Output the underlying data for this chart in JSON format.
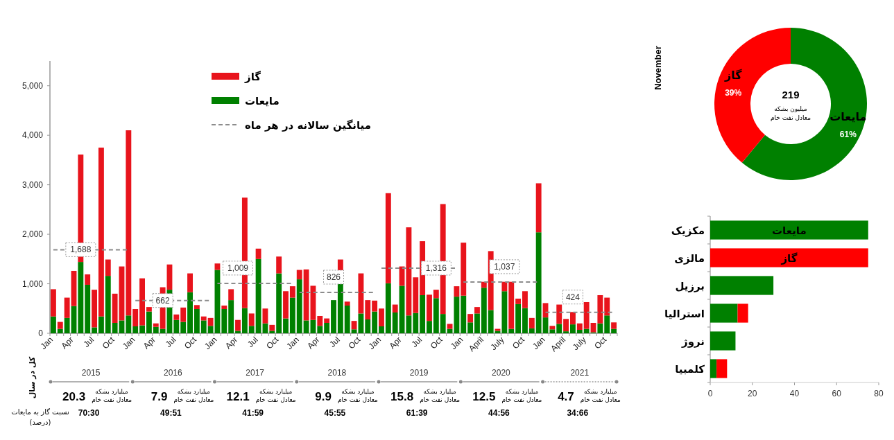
{
  "chart_data": [
    {
      "type": "bar",
      "stacked": true,
      "legend": "top",
      "categories": [
        "Jan",
        null,
        null,
        "Apr",
        null,
        null,
        "Jul",
        null,
        null,
        "Oct",
        null,
        null,
        "Jan",
        null,
        null,
        "Apr",
        null,
        null,
        "Jul",
        null,
        null,
        "Oct",
        null,
        null,
        "Jan",
        null,
        null,
        "Apr",
        null,
        null,
        "Jul",
        null,
        null,
        "Oct",
        null,
        null,
        "Jan",
        null,
        null,
        "Apr",
        null,
        null,
        "Jul",
        null,
        null,
        "Oct",
        null,
        null,
        "Jan",
        null,
        null,
        "Apr",
        null,
        null,
        "Jul",
        null,
        null,
        "Oct",
        null,
        null,
        "Jan",
        null,
        null,
        "April",
        null,
        null,
        "July",
        null,
        null,
        "Oct",
        null,
        null,
        "Jan",
        null,
        null,
        "April",
        null,
        null,
        "July",
        null,
        null,
        "Oct",
        null
      ],
      "ylim": [
        0,
        5500
      ],
      "yticks": [
        0,
        {
          "value": 1000,
          "label": "1,000"
        },
        {
          "value": 2000,
          "label": "2,000"
        },
        {
          "value": 3000,
          "label": "3,000"
        },
        {
          "value": 4000,
          "label": "4,000"
        },
        {
          "value": 5000,
          "label": "5,000"
        }
      ],
      "series": [
        {
          "name": "مایعات",
          "color": "#008000",
          "values": [
            340,
            90,
            310,
            550,
            1440,
            980,
            120,
            340,
            1160,
            210,
            260,
            360,
            140,
            160,
            440,
            130,
            90,
            880,
            270,
            230,
            830,
            490,
            260,
            150,
            1280,
            490,
            670,
            50,
            510,
            150,
            1500,
            200,
            50,
            1210,
            300,
            720,
            1090,
            260,
            270,
            150,
            210,
            670,
            1000,
            560,
            80,
            400,
            280,
            440,
            140,
            1010,
            420,
            960,
            360,
            410,
            770,
            250,
            710,
            390,
            90,
            740,
            760,
            220,
            400,
            920,
            470,
            50,
            850,
            90,
            590,
            510,
            100,
            2040,
            320,
            80,
            190,
            40,
            180,
            70,
            90,
            20,
            200,
            360,
            90
          ]
        },
        {
          "name": "گاز",
          "color": "#e8141c",
          "values": [
            550,
            140,
            410,
            710,
            2170,
            210,
            760,
            3410,
            330,
            590,
            1090,
            3740,
            350,
            950,
            90,
            70,
            840,
            510,
            110,
            290,
            380,
            80,
            80,
            160,
            130,
            70,
            220,
            220,
            2230,
            250,
            210,
            300,
            120,
            340,
            550,
            230,
            190,
            1030,
            690,
            200,
            90,
            null,
            490,
            80,
            170,
            810,
            390,
            220,
            360,
            1820,
            160,
            390,
            1780,
            720,
            1090,
            530,
            170,
            2220,
            100,
            210,
            1070,
            170,
            130,
            120,
            1190,
            40,
            190,
            950,
            110,
            340,
            210,
            990,
            290,
            70,
            390,
            250,
            250,
            130,
            540,
            190,
            570,
            360,
            130
          ]
        },
        {
          "name": "میانگین سالانه در هر ماه",
          "type": "line",
          "color": "#8c8c8c",
          "line_style": "dashed",
          "values": [
            1688,
            1688,
            1688,
            1688,
            1688,
            1688,
            1688,
            1688,
            1688,
            1688,
            1688,
            1688,
            null,
            null,
            null,
            null,
            null,
            null,
            null,
            null,
            null,
            null,
            null,
            null,
            null,
            null,
            null,
            null,
            null,
            null,
            null,
            null,
            null,
            null,
            null,
            null,
            null,
            null,
            null,
            null,
            null,
            null,
            null,
            null,
            null,
            null,
            null,
            null,
            null,
            null,
            null,
            null,
            null,
            null,
            null,
            null,
            null,
            null,
            null,
            null,
            null,
            null,
            null,
            null,
            null,
            null,
            null,
            null,
            null,
            null,
            null,
            null,
            null,
            null,
            null,
            null,
            null,
            null,
            null,
            null,
            null,
            null,
            null
          ],
          "value_labels": [
            null,
            null,
            null,
            null,
            "1,688",
            null,
            null,
            null,
            null,
            null,
            null,
            null,
            null,
            null,
            null,
            null,
            null,
            null,
            null,
            null,
            null,
            null,
            null,
            null,
            null,
            null,
            null,
            null,
            null,
            null,
            null,
            null,
            null,
            null,
            null,
            null,
            null,
            null,
            null,
            null,
            null,
            null,
            null,
            null,
            null,
            null,
            null,
            null,
            null,
            null,
            null,
            null,
            null,
            null,
            null,
            null,
            null,
            null,
            null,
            null,
            null,
            null,
            null,
            null,
            null,
            null,
            null,
            null,
            null,
            null,
            null,
            null,
            null,
            null,
            null,
            null,
            null,
            null,
            null,
            null,
            null,
            null,
            null
          ]
        },
        {
          "type": "line",
          "color": "#8c8c8c",
          "line_style": "dashed",
          "values": [
            null,
            null,
            null,
            null,
            null,
            null,
            null,
            null,
            null,
            null,
            null,
            null,
            662,
            662,
            662,
            662,
            662,
            662,
            662,
            662,
            662,
            662,
            662,
            662,
            null,
            null,
            null,
            null,
            null,
            null,
            null,
            null,
            null,
            null,
            null,
            null,
            null,
            null,
            null,
            null,
            null,
            null,
            null,
            null,
            null,
            null,
            null,
            null,
            null,
            null,
            null,
            null,
            null,
            null,
            null,
            null,
            null,
            null,
            null,
            null,
            null,
            null,
            null,
            null,
            null,
            null,
            null,
            null,
            null,
            null,
            null,
            null,
            null,
            null,
            null,
            null,
            null,
            null,
            null,
            null,
            null,
            null,
            null
          ],
          "value_labels": [
            null,
            null,
            null,
            null,
            null,
            null,
            null,
            null,
            null,
            null,
            null,
            null,
            null,
            null,
            null,
            null,
            "662",
            null,
            null,
            null,
            null,
            null,
            null,
            null,
            null,
            null,
            null,
            null,
            null,
            null,
            null,
            null,
            null,
            null,
            null,
            null,
            null,
            null,
            null,
            null,
            null,
            null,
            null,
            null,
            null,
            null,
            null,
            null,
            null,
            null,
            null,
            null,
            null,
            null,
            null,
            null,
            null,
            null,
            null,
            null,
            null,
            null,
            null,
            null,
            null,
            null,
            null,
            null,
            null,
            null,
            null,
            null,
            null,
            null,
            null,
            null,
            null,
            null,
            null,
            null,
            null,
            null,
            null
          ]
        },
        {
          "type": "line",
          "color": "#8c8c8c",
          "line_style": "dashed",
          "values": [
            null,
            null,
            null,
            null,
            null,
            null,
            null,
            null,
            null,
            null,
            null,
            null,
            null,
            null,
            null,
            null,
            null,
            null,
            null,
            null,
            null,
            null,
            null,
            null,
            1009,
            1009,
            1009,
            1009,
            1009,
            1009,
            1009,
            1009,
            1009,
            1009,
            1009,
            1009,
            null,
            null,
            null,
            null,
            null,
            null,
            null,
            null,
            null,
            null,
            null,
            null,
            null,
            null,
            null,
            null,
            null,
            null,
            null,
            null,
            null,
            null,
            null,
            null,
            null,
            null,
            null,
            null,
            null,
            null,
            null,
            null,
            null,
            null,
            null,
            null,
            null,
            null,
            null,
            null,
            null,
            null,
            null,
            null,
            null,
            null,
            null
          ],
          "value_labels": [
            null,
            null,
            null,
            null,
            null,
            null,
            null,
            null,
            null,
            null,
            null,
            null,
            null,
            null,
            null,
            null,
            null,
            null,
            null,
            null,
            null,
            null,
            null,
            null,
            null,
            null,
            null,
            "1,009",
            null,
            null,
            null,
            null,
            null,
            null,
            null,
            null,
            null,
            null,
            null,
            null,
            null,
            null,
            null,
            null,
            null,
            null,
            null,
            null,
            null,
            null,
            null,
            null,
            null,
            null,
            null,
            null,
            null,
            null,
            null,
            null,
            null,
            null,
            null,
            null,
            null,
            null,
            null,
            null,
            null,
            null,
            null,
            null,
            null,
            null,
            null,
            null,
            null,
            null,
            null,
            null,
            null,
            null,
            null
          ]
        },
        {
          "type": "line",
          "color": "#8c8c8c",
          "line_style": "dashed",
          "values": [
            null,
            null,
            null,
            null,
            null,
            null,
            null,
            null,
            null,
            null,
            null,
            null,
            null,
            null,
            null,
            null,
            null,
            null,
            null,
            null,
            null,
            null,
            null,
            null,
            null,
            null,
            null,
            null,
            null,
            null,
            null,
            null,
            null,
            null,
            null,
            null,
            826,
            826,
            826,
            826,
            826,
            826,
            826,
            826,
            826,
            826,
            826,
            826,
            null,
            null,
            null,
            null,
            null,
            null,
            null,
            null,
            null,
            null,
            null,
            null,
            null,
            null,
            null,
            null,
            null,
            null,
            null,
            null,
            null,
            null,
            null,
            null,
            null,
            null,
            null,
            null,
            null,
            null,
            null,
            null,
            null,
            null,
            null
          ],
          "value_labels": [
            null,
            null,
            null,
            null,
            null,
            null,
            null,
            null,
            null,
            null,
            null,
            null,
            null,
            null,
            null,
            null,
            null,
            null,
            null,
            null,
            null,
            null,
            null,
            null,
            null,
            null,
            null,
            null,
            null,
            null,
            null,
            null,
            null,
            null,
            null,
            null,
            null,
            null,
            null,
            null,
            null,
            "826",
            null,
            null,
            null,
            null,
            null,
            null,
            null,
            null,
            null,
            null,
            null,
            null,
            null,
            null,
            null,
            null,
            null,
            null,
            null,
            null,
            null,
            null,
            null,
            null,
            null,
            null,
            null,
            null,
            null,
            null,
            null,
            null,
            null,
            null,
            null,
            null,
            null,
            null,
            null,
            null,
            null
          ]
        },
        {
          "type": "line",
          "color": "#8c8c8c",
          "line_style": "dashed",
          "values": [
            null,
            null,
            null,
            null,
            null,
            null,
            null,
            null,
            null,
            null,
            null,
            null,
            null,
            null,
            null,
            null,
            null,
            null,
            null,
            null,
            null,
            null,
            null,
            null,
            null,
            null,
            null,
            null,
            null,
            null,
            null,
            null,
            null,
            null,
            null,
            null,
            null,
            null,
            null,
            null,
            null,
            null,
            null,
            null,
            null,
            null,
            null,
            null,
            1316,
            1316,
            1316,
            1316,
            1316,
            1316,
            1316,
            1316,
            1316,
            1316,
            1316,
            1316,
            null,
            null,
            null,
            null,
            null,
            null,
            null,
            null,
            null,
            null,
            null,
            null,
            null,
            null,
            null,
            null,
            null,
            null,
            null,
            null,
            null,
            null,
            null
          ],
          "value_labels": [
            null,
            null,
            null,
            null,
            null,
            null,
            null,
            null,
            null,
            null,
            null,
            null,
            null,
            null,
            null,
            null,
            null,
            null,
            null,
            null,
            null,
            null,
            null,
            null,
            null,
            null,
            null,
            null,
            null,
            null,
            null,
            null,
            null,
            null,
            null,
            null,
            null,
            null,
            null,
            null,
            null,
            null,
            null,
            null,
            null,
            null,
            null,
            null,
            null,
            null,
            null,
            null,
            null,
            null,
            null,
            null,
            "1,316",
            null,
            null,
            null,
            null,
            null,
            null,
            null,
            null,
            null,
            null,
            null,
            null,
            null,
            null,
            null,
            null,
            null,
            null,
            null,
            null,
            null,
            null,
            null,
            null,
            null,
            null
          ]
        },
        {
          "type": "line",
          "color": "#8c8c8c",
          "line_style": "dashed",
          "values": [
            null,
            null,
            null,
            null,
            null,
            null,
            null,
            null,
            null,
            null,
            null,
            null,
            null,
            null,
            null,
            null,
            null,
            null,
            null,
            null,
            null,
            null,
            null,
            null,
            null,
            null,
            null,
            null,
            null,
            null,
            null,
            null,
            null,
            null,
            null,
            null,
            null,
            null,
            null,
            null,
            null,
            null,
            null,
            null,
            null,
            null,
            null,
            null,
            null,
            null,
            null,
            null,
            null,
            null,
            null,
            null,
            null,
            null,
            null,
            null,
            1037,
            1037,
            1037,
            1037,
            1037,
            1037,
            1037,
            1037,
            1037,
            1037,
            1037,
            1037,
            null,
            null,
            null,
            null,
            null,
            null,
            null,
            null,
            null,
            null,
            null
          ],
          "value_labels": [
            null,
            null,
            null,
            null,
            null,
            null,
            null,
            null,
            null,
            null,
            null,
            null,
            null,
            null,
            null,
            null,
            null,
            null,
            null,
            null,
            null,
            null,
            null,
            null,
            null,
            null,
            null,
            null,
            null,
            null,
            null,
            null,
            null,
            null,
            null,
            null,
            null,
            null,
            null,
            null,
            null,
            null,
            null,
            null,
            null,
            null,
            null,
            null,
            null,
            null,
            null,
            null,
            null,
            null,
            null,
            null,
            null,
            null,
            null,
            null,
            null,
            null,
            null,
            null,
            null,
            null,
            "1,037",
            null,
            null,
            null,
            null,
            null,
            null,
            null,
            null,
            null,
            null,
            null,
            null,
            null,
            null,
            null,
            null
          ]
        },
        {
          "type": "line",
          "color": "#8c8c8c",
          "line_style": "dashed",
          "values": [
            null,
            null,
            null,
            null,
            null,
            null,
            null,
            null,
            null,
            null,
            null,
            null,
            null,
            null,
            null,
            null,
            null,
            null,
            null,
            null,
            null,
            null,
            null,
            null,
            null,
            null,
            null,
            null,
            null,
            null,
            null,
            null,
            null,
            null,
            null,
            null,
            null,
            null,
            null,
            null,
            null,
            null,
            null,
            null,
            null,
            null,
            null,
            null,
            null,
            null,
            null,
            null,
            null,
            null,
            null,
            null,
            null,
            null,
            null,
            null,
            null,
            null,
            null,
            null,
            null,
            null,
            null,
            null,
            null,
            null,
            null,
            null,
            424,
            424,
            424,
            424,
            424,
            424,
            424,
            424,
            424,
            424,
            424
          ],
          "value_labels": [
            null,
            null,
            null,
            null,
            null,
            null,
            null,
            null,
            null,
            null,
            null,
            null,
            null,
            null,
            null,
            null,
            null,
            null,
            null,
            null,
            null,
            null,
            null,
            null,
            null,
            null,
            null,
            null,
            null,
            null,
            null,
            null,
            null,
            null,
            null,
            null,
            null,
            null,
            null,
            null,
            null,
            null,
            null,
            null,
            null,
            null,
            null,
            null,
            null,
            null,
            null,
            null,
            null,
            null,
            null,
            null,
            null,
            null,
            null,
            null,
            null,
            null,
            null,
            null,
            null,
            null,
            null,
            null,
            null,
            null,
            null,
            null,
            null,
            null,
            null,
            null,
            "424",
            null,
            null,
            null,
            null,
            null,
            null
          ]
        }
      ],
      "annotations": [
        "2015",
        "20.3",
        "میلیارد بشکه\nمعادل نفت خام",
        "70:30",
        "2016",
        "7.9",
        "میلیارد بشکه\nمعادل نفت خام",
        "49:51",
        "2017",
        "12.1",
        "میلیارد بشکه\nمعادل نفت خام",
        "41:59",
        "2018",
        "9.9",
        "میلیارد بشکه\nمعادل نفت خام",
        "45:55",
        "2019",
        "15.8",
        "میلیارد بشکه\nمعادل نفت خام",
        "61:39",
        "2020",
        "12.5",
        "میلیارد بشکه\nمعادل نفت خام",
        "44:56",
        "2021",
        "4.7",
        "میلیارد بشکه\nمعادل نفت خام",
        "34:66",
        "کل در سال",
        "نسبت گاز به مایعات\n(درصد)"
      ]
    },
    {
      "type": "donut",
      "title": "November",
      "categories": [
        "مایعات",
        "گاز"
      ],
      "values": [
        61,
        39
      ],
      "colors": [
        "#008000",
        "#ff0000"
      ],
      "value_labels": [
        "61%",
        "39%"
      ],
      "annotations": [
        "219",
        "میلیون بشکه\nمعادل نفت خام"
      ]
    },
    {
      "type": "bar",
      "orientation": "horizontal",
      "stacked": true,
      "categories": [
        "مکزیک",
        "مالزی",
        "برزیل",
        "استرالیا",
        "نروژ",
        "کلمبیا"
      ],
      "xlim": [
        0,
        80
      ],
      "xticks": [
        0,
        20,
        40,
        60,
        80
      ],
      "series": [
        {
          "name": "مایعات",
          "color": "#008000",
          "values": [
            75,
            0,
            30,
            13,
            12,
            3
          ]
        },
        {
          "name": "گاز",
          "color": "#ff0000",
          "values": [
            0,
            75,
            0,
            5,
            0,
            5
          ]
        }
      ]
    }
  ]
}
